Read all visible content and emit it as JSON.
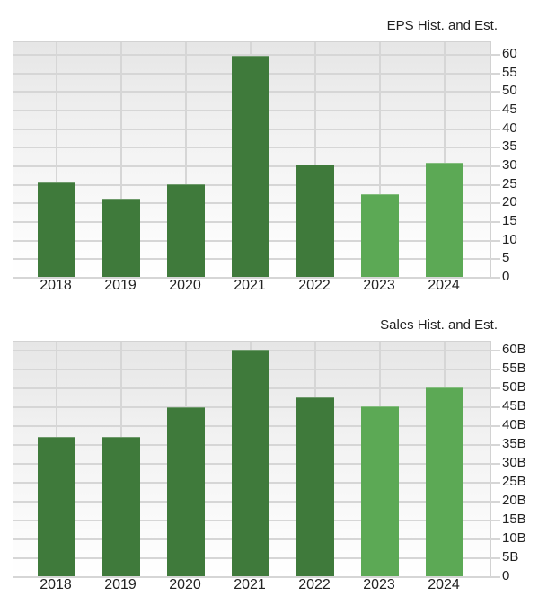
{
  "colors": {
    "historical": "#3f7a3b",
    "estimate": "#5ca955",
    "grid": "#d6d6d6"
  },
  "chart_data": [
    {
      "type": "bar",
      "title": "EPS Hist. and Est.",
      "xlabel": "",
      "ylabel": "",
      "categories": [
        "2018",
        "2019",
        "2020",
        "2021",
        "2022",
        "2023",
        "2024"
      ],
      "values": [
        25.4,
        21.1,
        24.9,
        59.6,
        30.3,
        22.3,
        30.8
      ],
      "series_type": [
        "historical",
        "historical",
        "historical",
        "historical",
        "historical",
        "estimate",
        "estimate"
      ],
      "ylim": [
        0,
        60
      ],
      "yticks": [
        "0",
        "5",
        "10",
        "15",
        "20",
        "25",
        "30",
        "35",
        "40",
        "45",
        "50",
        "55",
        "60"
      ],
      "grid": true,
      "yaxis_position": "right"
    },
    {
      "type": "bar",
      "title": "Sales Hist. and Est.",
      "xlabel": "",
      "ylabel": "",
      "categories": [
        "2018",
        "2019",
        "2020",
        "2021",
        "2022",
        "2023",
        "2024"
      ],
      "values": [
        37.0,
        37.0,
        44.7,
        60.0,
        47.5,
        45.1,
        50.0
      ],
      "value_unit": "B",
      "series_type": [
        "historical",
        "historical",
        "historical",
        "historical",
        "historical",
        "estimate",
        "estimate"
      ],
      "ylim": [
        0,
        60
      ],
      "yticks": [
        "0",
        "5B",
        "10B",
        "15B",
        "20B",
        "25B",
        "30B",
        "35B",
        "40B",
        "45B",
        "50B",
        "55B",
        "60B"
      ],
      "grid": true,
      "yaxis_position": "right"
    }
  ]
}
